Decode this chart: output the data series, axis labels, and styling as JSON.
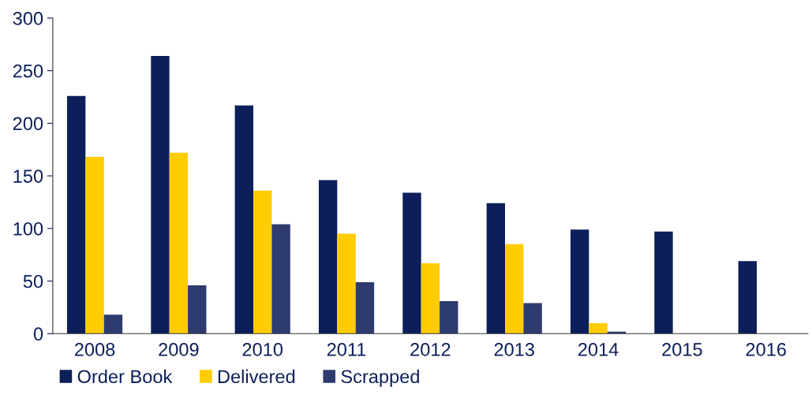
{
  "chart_data": {
    "type": "bar",
    "categories": [
      "2008",
      "2009",
      "2010",
      "2011",
      "2012",
      "2013",
      "2014",
      "2015",
      "2016"
    ],
    "series": [
      {
        "name": "Order Book",
        "color": "#0c1f5a",
        "values": [
          226,
          264,
          217,
          146,
          134,
          124,
          99,
          97,
          69
        ]
      },
      {
        "name": "Delivered",
        "color": "#ffcc00",
        "values": [
          168,
          172,
          136,
          95,
          67,
          85,
          10,
          null,
          null
        ]
      },
      {
        "name": "Scrapped",
        "color": "#2e3b6f",
        "values": [
          18,
          46,
          104,
          49,
          31,
          29,
          2,
          null,
          null
        ]
      }
    ],
    "ylim": [
      0,
      300
    ],
    "yticks": [
      0,
      50,
      100,
      150,
      200,
      250,
      300
    ],
    "grid": false,
    "legend": "bottom left"
  }
}
